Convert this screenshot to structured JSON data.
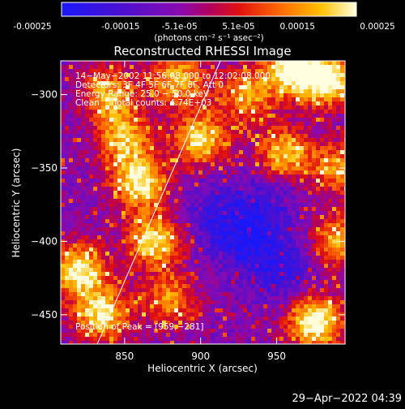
{
  "colorbar": {
    "ticks": [
      "-0.00025",
      "-0.00015",
      "-5.1e-05",
      "5.1e-05",
      "0.00015",
      "0.00025"
    ],
    "unit_label": "(photons cm⁻² s⁻¹ asec⁻²)",
    "range": [
      -0.00025,
      0.00025
    ]
  },
  "chart_data": {
    "type": "heatmap",
    "title": "Reconstructed RHESSI Image",
    "xlabel": "Heliocentric X (arcsec)",
    "ylabel": "Heliocentric Y (arcsec)",
    "xlim": [
      808,
      995
    ],
    "ylim": [
      -470,
      -277
    ],
    "x_ticks": [
      850,
      900,
      950
    ],
    "x_tick_labels": [
      "850",
      "900",
      "950"
    ],
    "y_ticks": [
      -300,
      -350,
      -400,
      -450
    ],
    "y_tick_labels": [
      "−300",
      "−350",
      "−400",
      "−450"
    ],
    "annotations": [
      "14−May−2002 11:56:08.000 to 12:02:08.000",
      "Detectors: 3F 4F 5F 6F 7F 8F, Att 0",
      "Energy Range: 25.0 − 50.0 keV",
      "Clean     Total counts: 4.74E+03"
    ],
    "peak_label": "Position of Peak = [959,−281]",
    "peak_position": [
      959,
      -281
    ],
    "limb_line": [
      [
        832,
        -470
      ],
      [
        913,
        -277
      ]
    ],
    "bright_regions": [
      {
        "x": 860,
        "y": -360,
        "level": 0.9
      },
      {
        "x": 870,
        "y": -400,
        "level": 0.85
      },
      {
        "x": 820,
        "y": -420,
        "level": 0.9
      },
      {
        "x": 835,
        "y": -450,
        "level": 0.85
      },
      {
        "x": 960,
        "y": -282,
        "level": 1.0
      },
      {
        "x": 985,
        "y": -290,
        "level": 0.95
      },
      {
        "x": 975,
        "y": -455,
        "level": 1.0
      },
      {
        "x": 900,
        "y": -330,
        "level": 0.8
      },
      {
        "x": 885,
        "y": -290,
        "level": 0.75
      },
      {
        "x": 840,
        "y": -300,
        "level": 0.7
      },
      {
        "x": 955,
        "y": -340,
        "level": 0.75
      },
      {
        "x": 990,
        "y": -400,
        "level": 0.7
      },
      {
        "x": 930,
        "y": -300,
        "level": 0.65
      },
      {
        "x": 850,
        "y": -330,
        "level": 0.7
      },
      {
        "x": 880,
        "y": -440,
        "level": 0.6
      },
      {
        "x": 990,
        "y": -350,
        "level": 0.6
      }
    ],
    "dark_regions": [
      {
        "x": 930,
        "y": -400,
        "level": 0.8
      },
      {
        "x": 955,
        "y": -420,
        "level": 0.7
      },
      {
        "x": 910,
        "y": -380,
        "level": 0.6
      },
      {
        "x": 945,
        "y": -375,
        "level": 0.5
      }
    ]
  },
  "footer": {
    "timestamp": "29−Apr−2022 04:39"
  }
}
